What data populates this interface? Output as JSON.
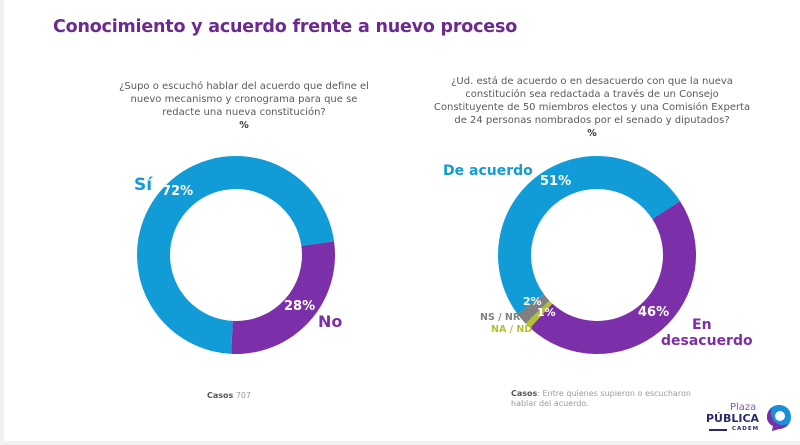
{
  "title": "Conocimiento y acuerdo frente a nuevo proceso",
  "colors": {
    "title": "#6c2a8e",
    "blue": "#119cd8",
    "purple": "#7b2fa8",
    "gray": "#7f7f7f",
    "yellow": "#b5c12a"
  },
  "chart_data": [
    {
      "type": "pie",
      "subtype": "donut",
      "title": "¿Supo o escuchó hablar del acuerdo que define el nuevo mecanismo y cronograma para que se redacte una nueva constitución?",
      "unit": "%",
      "slices": [
        {
          "label": "Sí",
          "value": 72,
          "value_label": "72%",
          "color": "#119cd8"
        },
        {
          "label": "No",
          "value": 28,
          "value_label": "28%",
          "color": "#7b2fa8"
        }
      ],
      "casos_label": "Casos",
      "casos_text": "707"
    },
    {
      "type": "pie",
      "subtype": "donut",
      "title": "¿Ud. está de acuerdo o en desacuerdo con que la nueva constitución sea redactada a través de un Consejo Constituyente de 50 miembros electos y una Comisión Experta de 24 personas nombrados por el senado y diputados?",
      "unit": "%",
      "slices": [
        {
          "label": "De acuerdo",
          "value": 51,
          "value_label": "51%",
          "color": "#119cd8"
        },
        {
          "label": "En desacuerdo",
          "value": 46,
          "value_label": "46%",
          "color": "#7b2fa8"
        },
        {
          "label": "NA / ND",
          "value": 1,
          "value_label": "1%",
          "color": "#b5c12a"
        },
        {
          "label": "NS / NR",
          "value": 2,
          "value_label": "2%",
          "color": "#7f7f7f"
        }
      ],
      "casos_label": "Casos",
      "casos_text": "Entre quienes supieron o escucharon hablar del acuerdo."
    }
  ],
  "questions": {
    "q1_lines": [
      "¿Supo o escuchó hablar del acuerdo que define el",
      "nuevo mecanismo y cronograma para que se",
      "redacte una nueva constitución?"
    ],
    "q2_lines": [
      "¿Ud. está de acuerdo o en desacuerdo con que la nueva",
      "constitución sea redactada a través de un Consejo",
      "Constituyente de 50 miembros electos y una Comisión Experta",
      "de 24 personas nombrados por el senado y diputados?"
    ],
    "unit": "%"
  },
  "logo": {
    "line1": "Plaza",
    "line2": "PÚBLICA",
    "line3": "CADEM"
  }
}
